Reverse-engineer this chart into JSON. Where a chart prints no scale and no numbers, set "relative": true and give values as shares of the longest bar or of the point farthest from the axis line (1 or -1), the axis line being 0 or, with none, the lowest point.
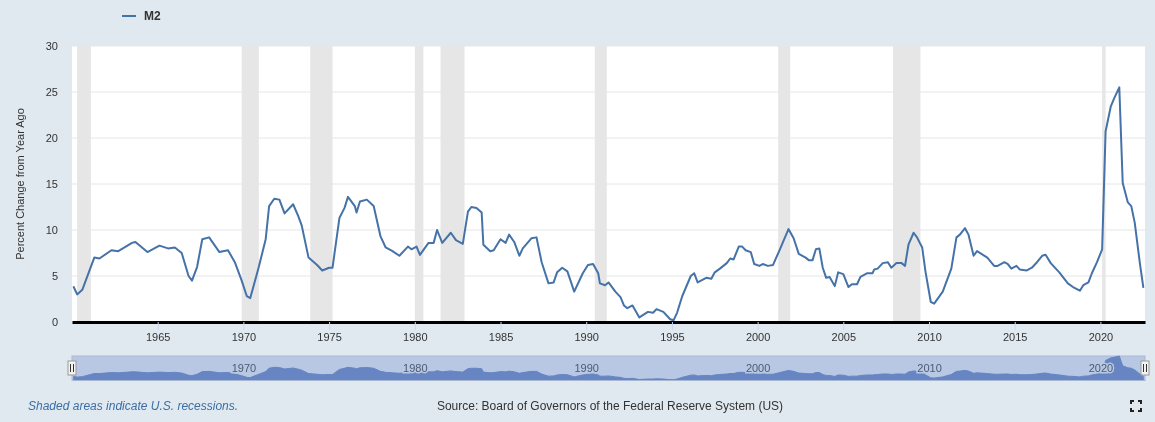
{
  "chart_data": [
    {
      "type": "line",
      "ylabel": "Percent Change from Year Ago",
      "xlim": [
        1960.0,
        2022.6
      ],
      "xticks": [
        1965,
        1970,
        1975,
        1980,
        1985,
        1990,
        1995,
        2000,
        2005,
        2010,
        2015,
        2020
      ],
      "ylim": [
        0,
        30
      ],
      "yticks": [
        0,
        5,
        10,
        15,
        20,
        25,
        30
      ],
      "grid": "y",
      "legend": "top left",
      "x": [
        1960.1,
        1960.3,
        1960.6,
        1961.3,
        1961.6,
        1962.3,
        1962.7,
        1963.5,
        1963.7,
        1964.4,
        1965.1,
        1965.6,
        1966.0,
        1966.4,
        1966.8,
        1967.0,
        1967.3,
        1967.6,
        1968.0,
        1968.6,
        1969.1,
        1969.5,
        1969.9,
        1970.2,
        1970.4,
        1970.9,
        1971.3,
        1971.5,
        1971.8,
        1972.1,
        1972.4,
        1972.9,
        1973.2,
        1973.4,
        1973.8,
        1974.3,
        1974.6,
        1975.0,
        1975.2,
        1975.6,
        1975.9,
        1976.1,
        1976.5,
        1976.6,
        1976.8,
        1977.2,
        1977.6,
        1978.0,
        1978.3,
        1978.7,
        1979.1,
        1979.6,
        1979.8,
        1980.1,
        1980.3,
        1980.8,
        1981.1,
        1981.3,
        1981.6,
        1982.1,
        1982.4,
        1982.8,
        1983.1,
        1983.3,
        1983.6,
        1983.9,
        1984.0,
        1984.4,
        1984.6,
        1985.0,
        1985.3,
        1985.5,
        1985.8,
        1986.1,
        1986.3,
        1986.8,
        1987.1,
        1987.4,
        1987.8,
        1988.1,
        1988.3,
        1988.6,
        1988.9,
        1989.3,
        1989.8,
        1990.1,
        1990.4,
        1990.7,
        1990.8,
        1991.1,
        1991.3,
        1991.7,
        1992.0,
        1992.2,
        1992.4,
        1992.7,
        1993.1,
        1993.6,
        1993.9,
        1994.1,
        1994.5,
        1994.9,
        1995.1,
        1995.3,
        1995.6,
        1996.1,
        1996.3,
        1996.5,
        1997.0,
        1997.3,
        1997.5,
        1997.8,
        1998.2,
        1998.4,
        1998.6,
        1998.9,
        1999.1,
        1999.3,
        1999.6,
        1999.8,
        2000.1,
        2000.3,
        2000.6,
        2000.9,
        2001.3,
        2001.8,
        2002.1,
        2002.4,
        2002.8,
        2003.0,
        2003.2,
        2003.4,
        2003.6,
        2003.8,
        2004.0,
        2004.2,
        2004.5,
        2004.7,
        2005.0,
        2005.3,
        2005.5,
        2005.8,
        2006.0,
        2006.4,
        2006.7,
        2006.8,
        2007.0,
        2007.3,
        2007.6,
        2007.8,
        2008.1,
        2008.4,
        2008.6,
        2008.8,
        2009.1,
        2009.3,
        2009.6,
        2009.8,
        2010.1,
        2010.3,
        2010.8,
        2011.3,
        2011.6,
        2011.8,
        2012.1,
        2012.3,
        2012.6,
        2012.8,
        2013.4,
        2013.8,
        2014.0,
        2014.4,
        2014.6,
        2014.8,
        2015.1,
        2015.3,
        2015.7,
        2016.0,
        2016.3,
        2016.6,
        2016.8,
        2017.1,
        2017.6,
        2018.1,
        2018.4,
        2018.8,
        2019.0,
        2019.3,
        2019.5,
        2019.8,
        2020.1,
        2020.3,
        2020.6,
        2020.8,
        2021.1,
        2021.3,
        2021.6,
        2021.8,
        2022.0,
        2022.3,
        2022.5
      ],
      "series": [
        {
          "name": "M2",
          "color": "#4572a7",
          "values": [
            3.8,
            3.0,
            3.5,
            7.0,
            6.9,
            7.8,
            7.7,
            8.6,
            8.7,
            7.6,
            8.3,
            8.0,
            8.1,
            7.5,
            5.0,
            4.5,
            6.0,
            9.0,
            9.2,
            7.6,
            7.8,
            6.5,
            4.5,
            2.8,
            2.6,
            6.0,
            9.0,
            12.6,
            13.4,
            13.3,
            11.8,
            12.8,
            11.5,
            10.5,
            7.0,
            6.2,
            5.6,
            5.9,
            5.9,
            11.3,
            12.4,
            13.6,
            12.6,
            11.9,
            13.1,
            13.3,
            12.6,
            9.3,
            8.1,
            7.7,
            7.2,
            8.2,
            7.9,
            8.2,
            7.3,
            8.6,
            8.6,
            10.0,
            8.6,
            9.7,
            8.9,
            8.5,
            12.0,
            12.5,
            12.4,
            11.9,
            8.4,
            7.7,
            7.8,
            9.0,
            8.6,
            9.5,
            8.7,
            7.2,
            8.0,
            9.1,
            9.2,
            6.5,
            4.2,
            4.3,
            5.4,
            5.9,
            5.5,
            3.3,
            5.3,
            6.2,
            6.3,
            5.3,
            4.2,
            4.0,
            4.3,
            3.3,
            2.7,
            1.8,
            1.5,
            1.8,
            0.5,
            1.1,
            1.0,
            1.4,
            1.1,
            0.3,
            0.2,
            1.0,
            2.8,
            5.0,
            5.3,
            4.3,
            4.8,
            4.7,
            5.4,
            5.8,
            6.4,
            6.9,
            6.8,
            8.2,
            8.2,
            7.8,
            7.6,
            6.3,
            6.1,
            6.3,
            6.1,
            6.2,
            7.9,
            10.1,
            9.1,
            7.4,
            7.0,
            6.7,
            6.7,
            7.9,
            8.0,
            5.9,
            4.8,
            4.9,
            3.9,
            5.4,
            5.2,
            3.8,
            4.1,
            4.1,
            4.9,
            5.3,
            5.3,
            5.7,
            5.8,
            6.4,
            6.5,
            5.9,
            6.4,
            6.4,
            6.1,
            8.4,
            9.7,
            9.2,
            8.1,
            5.4,
            2.2,
            2.0,
            3.3,
            5.8,
            9.2,
            9.5,
            10.2,
            9.5,
            7.2,
            7.7,
            7.0,
            6.1,
            6.1,
            6.5,
            6.3,
            5.8,
            6.1,
            5.7,
            5.6,
            5.9,
            6.5,
            7.2,
            7.3,
            6.4,
            5.4,
            4.2,
            3.8,
            3.4,
            4.0,
            4.3,
            5.3,
            6.5,
            7.9,
            20.7,
            23.4,
            24.3,
            25.5,
            15.1,
            13.0,
            12.6,
            10.8,
            6.4,
            3.8
          ]
        }
      ],
      "bands": [
        {
          "axis": "x",
          "from": 1960.3,
          "to": 1961.1,
          "color": "#e6e6e6"
        },
        {
          "axis": "x",
          "from": 1969.9,
          "to": 1970.9,
          "color": "#e6e6e6"
        },
        {
          "axis": "x",
          "from": 1973.9,
          "to": 1975.2,
          "color": "#e6e6e6"
        },
        {
          "axis": "x",
          "from": 1980.0,
          "to": 1980.5,
          "color": "#e6e6e6"
        },
        {
          "axis": "x",
          "from": 1981.5,
          "to": 1982.9,
          "color": "#e6e6e6"
        },
        {
          "axis": "x",
          "from": 1990.5,
          "to": 1991.2,
          "color": "#e6e6e6"
        },
        {
          "axis": "x",
          "from": 2001.2,
          "to": 2001.9,
          "color": "#e6e6e6"
        },
        {
          "axis": "x",
          "from": 2007.9,
          "to": 2009.5,
          "color": "#e6e6e6"
        },
        {
          "axis": "x",
          "from": 2020.1,
          "to": 2020.3,
          "color": "#e6e6e6"
        }
      ],
      "annotations": [
        "Shaded areas indicate U.S. recessions.",
        "Source: Board of Governors of the Federal Reserve System (US)"
      ]
    },
    {
      "type": "area",
      "xlim": [
        1960.0,
        2022.6
      ],
      "xticks": [
        1970,
        1980,
        1990,
        2000,
        2010,
        2020
      ],
      "relative": true,
      "tick_labels": "x",
      "x": [
        1960.1,
        1960.3,
        1960.6,
        1961.3,
        1961.6,
        1962.3,
        1962.7,
        1963.5,
        1963.7,
        1964.4,
        1965.1,
        1965.6,
        1966.0,
        1966.4,
        1966.8,
        1967.0,
        1967.3,
        1967.6,
        1968.0,
        1968.6,
        1969.1,
        1969.5,
        1969.9,
        1970.2,
        1970.4,
        1970.9,
        1971.3,
        1971.5,
        1971.8,
        1972.1,
        1972.4,
        1972.9,
        1973.2,
        1973.4,
        1973.8,
        1974.3,
        1974.6,
        1975.0,
        1975.2,
        1975.6,
        1975.9,
        1976.1,
        1976.5,
        1976.6,
        1976.8,
        1977.2,
        1977.6,
        1978.0,
        1978.3,
        1978.7,
        1979.1,
        1979.6,
        1979.8,
        1980.1,
        1980.3,
        1980.8,
        1981.1,
        1981.3,
        1981.6,
        1982.1,
        1982.4,
        1982.8,
        1983.1,
        1983.3,
        1983.6,
        1983.9,
        1984.0,
        1984.4,
        1984.6,
        1985.0,
        1985.3,
        1985.5,
        1985.8,
        1986.1,
        1986.3,
        1986.8,
        1987.1,
        1987.4,
        1987.8,
        1988.1,
        1988.3,
        1988.6,
        1988.9,
        1989.3,
        1989.8,
        1990.1,
        1990.4,
        1990.7,
        1990.8,
        1991.1,
        1991.3,
        1991.7,
        1992.0,
        1992.2,
        1992.4,
        1992.7,
        1993.1,
        1993.6,
        1993.9,
        1994.1,
        1994.5,
        1994.9,
        1995.1,
        1995.3,
        1995.6,
        1996.1,
        1996.3,
        1996.5,
        1997.0,
        1997.3,
        1997.5,
        1997.8,
        1998.2,
        1998.4,
        1998.6,
        1998.9,
        1999.1,
        1999.3,
        1999.6,
        1999.8,
        2000.1,
        2000.3,
        2000.6,
        2000.9,
        2001.3,
        2001.8,
        2002.1,
        2002.4,
        2002.8,
        2003.0,
        2003.2,
        2003.4,
        2003.6,
        2003.8,
        2004.0,
        2004.2,
        2004.5,
        2004.7,
        2005.0,
        2005.3,
        2005.5,
        2005.8,
        2006.0,
        2006.4,
        2006.7,
        2006.8,
        2007.0,
        2007.3,
        2007.6,
        2007.8,
        2008.1,
        2008.4,
        2008.6,
        2008.8,
        2009.1,
        2009.3,
        2009.6,
        2009.8,
        2010.1,
        2010.3,
        2010.8,
        2011.3,
        2011.6,
        2011.8,
        2012.1,
        2012.3,
        2012.6,
        2012.8,
        2013.4,
        2013.8,
        2014.0,
        2014.4,
        2014.6,
        2014.8,
        2015.1,
        2015.3,
        2015.7,
        2016.0,
        2016.3,
        2016.6,
        2016.8,
        2017.1,
        2017.6,
        2018.1,
        2018.4,
        2018.8,
        2019.0,
        2019.3,
        2019.5,
        2019.8,
        2020.1,
        2020.3,
        2020.6,
        2020.8,
        2021.1,
        2021.3,
        2021.6,
        2021.8,
        2022.0,
        2022.3,
        2022.5
      ],
      "series": [
        {
          "color": "#6685c2",
          "values": [
            0.15,
            0.12,
            0.14,
            0.27,
            0.27,
            0.31,
            0.3,
            0.34,
            0.34,
            0.3,
            0.33,
            0.31,
            0.32,
            0.29,
            0.2,
            0.18,
            0.24,
            0.35,
            0.36,
            0.3,
            0.31,
            0.25,
            0.18,
            0.11,
            0.1,
            0.24,
            0.35,
            0.49,
            0.53,
            0.52,
            0.46,
            0.5,
            0.45,
            0.41,
            0.27,
            0.24,
            0.22,
            0.23,
            0.23,
            0.44,
            0.49,
            0.53,
            0.49,
            0.47,
            0.51,
            0.52,
            0.49,
            0.36,
            0.32,
            0.3,
            0.28,
            0.32,
            0.31,
            0.32,
            0.29,
            0.34,
            0.34,
            0.39,
            0.34,
            0.38,
            0.35,
            0.33,
            0.47,
            0.49,
            0.49,
            0.47,
            0.33,
            0.3,
            0.31,
            0.35,
            0.34,
            0.37,
            0.34,
            0.28,
            0.31,
            0.36,
            0.36,
            0.25,
            0.16,
            0.17,
            0.21,
            0.23,
            0.22,
            0.13,
            0.21,
            0.24,
            0.25,
            0.21,
            0.16,
            0.16,
            0.17,
            0.13,
            0.11,
            0.07,
            0.06,
            0.07,
            0.02,
            0.04,
            0.04,
            0.05,
            0.04,
            0.01,
            0.01,
            0.04,
            0.11,
            0.2,
            0.21,
            0.17,
            0.19,
            0.18,
            0.21,
            0.23,
            0.25,
            0.27,
            0.27,
            0.32,
            0.32,
            0.31,
            0.3,
            0.25,
            0.24,
            0.25,
            0.24,
            0.24,
            0.31,
            0.4,
            0.36,
            0.29,
            0.27,
            0.26,
            0.26,
            0.31,
            0.31,
            0.23,
            0.19,
            0.19,
            0.15,
            0.21,
            0.2,
            0.15,
            0.16,
            0.16,
            0.19,
            0.21,
            0.21,
            0.22,
            0.23,
            0.25,
            0.25,
            0.23,
            0.25,
            0.25,
            0.24,
            0.33,
            0.38,
            0.36,
            0.32,
            0.21,
            0.09,
            0.08,
            0.13,
            0.23,
            0.36,
            0.37,
            0.4,
            0.37,
            0.28,
            0.3,
            0.27,
            0.24,
            0.24,
            0.25,
            0.25,
            0.23,
            0.24,
            0.22,
            0.22,
            0.23,
            0.25,
            0.28,
            0.29,
            0.25,
            0.21,
            0.16,
            0.15,
            0.13,
            0.16,
            0.17,
            0.21,
            0.25,
            0.31,
            0.81,
            0.92,
            0.95,
            1,
            0.59,
            0.51,
            0.49,
            0.42,
            0.25,
            0.15
          ]
        }
      ]
    }
  ]
}
